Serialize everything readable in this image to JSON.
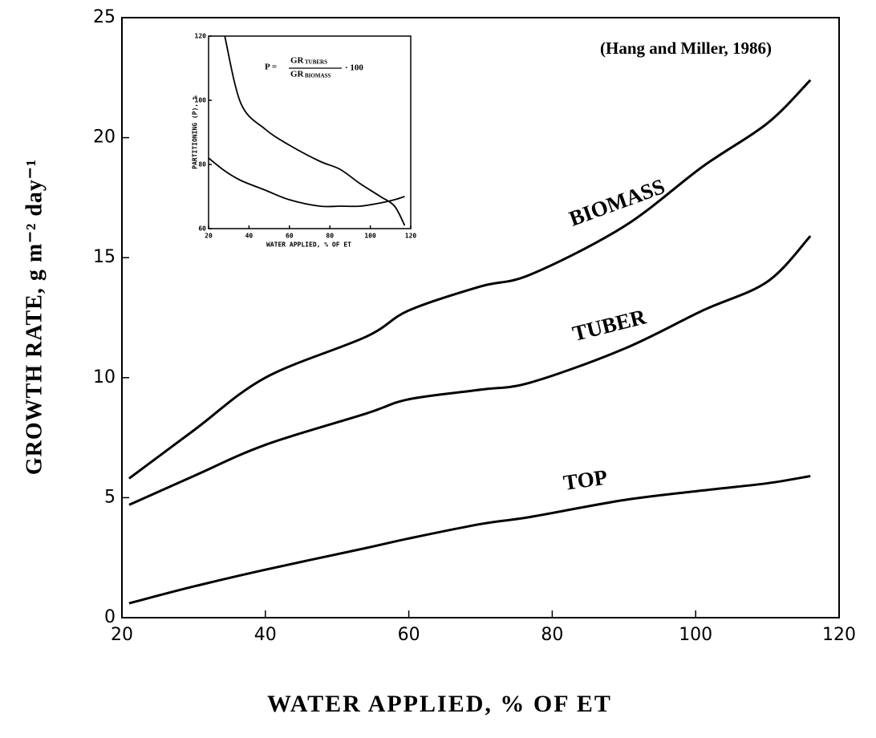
{
  "chart_data": [
    {
      "type": "line",
      "xlabel": "WATER APPLIED, % OF ET",
      "ylabel": "GROWTH RATE, g m⁻² day⁻¹",
      "annotation": "(Hang and Miller, 1986)",
      "x": [
        21,
        30,
        40,
        54,
        60,
        70,
        77,
        90,
        101,
        110,
        116
      ],
      "series": [
        {
          "name": "BIOMASS",
          "color": "#000000",
          "values": [
            5.8,
            7.8,
            10.0,
            11.7,
            12.8,
            13.8,
            14.3,
            16.3,
            18.8,
            20.6,
            22.4
          ]
        },
        {
          "name": "TUBER",
          "color": "#000000",
          "values": [
            4.7,
            5.9,
            7.2,
            8.5,
            9.1,
            9.5,
            9.8,
            11.2,
            12.8,
            14.0,
            15.9
          ]
        },
        {
          "name": "TOP",
          "color": "#000000",
          "values": [
            0.6,
            1.3,
            2.0,
            2.9,
            3.3,
            3.9,
            4.2,
            4.9,
            5.3,
            5.6,
            5.9
          ]
        }
      ],
      "xlim": [
        20,
        120
      ],
      "ylim": [
        0,
        25
      ],
      "xticks": [
        20,
        40,
        60,
        80,
        100,
        120
      ],
      "yticks": [
        0,
        5,
        10,
        15,
        20,
        25
      ]
    },
    {
      "type": "line",
      "xlabel": "WATER APPLIED, % OF ET",
      "ylabel": "PARTITIONING (P), %",
      "equation": {
        "lhs": "P =",
        "numerator": "GR",
        "numerator_sub": "TUBERS",
        "denominator": "GR",
        "denominator_sub": "BIOMASS",
        "rhs": "· 100"
      },
      "x": [
        20,
        28,
        36,
        48,
        60,
        75,
        85,
        95,
        105,
        112,
        117
      ],
      "series": [
        {
          "color": "#000000",
          "values": [
            null,
            120,
            99,
            91,
            86,
            81,
            78.5,
            74,
            70,
            67,
            61
          ]
        },
        {
          "color": "#000000",
          "values": [
            82,
            78,
            75,
            72,
            69,
            67,
            67,
            67,
            68,
            69,
            70
          ]
        }
      ],
      "xlim": [
        20,
        120
      ],
      "ylim": [
        60,
        120
      ],
      "xticks": [
        20,
        40,
        60,
        80,
        100,
        120
      ],
      "yticks": [
        60,
        80,
        100,
        120
      ]
    }
  ]
}
